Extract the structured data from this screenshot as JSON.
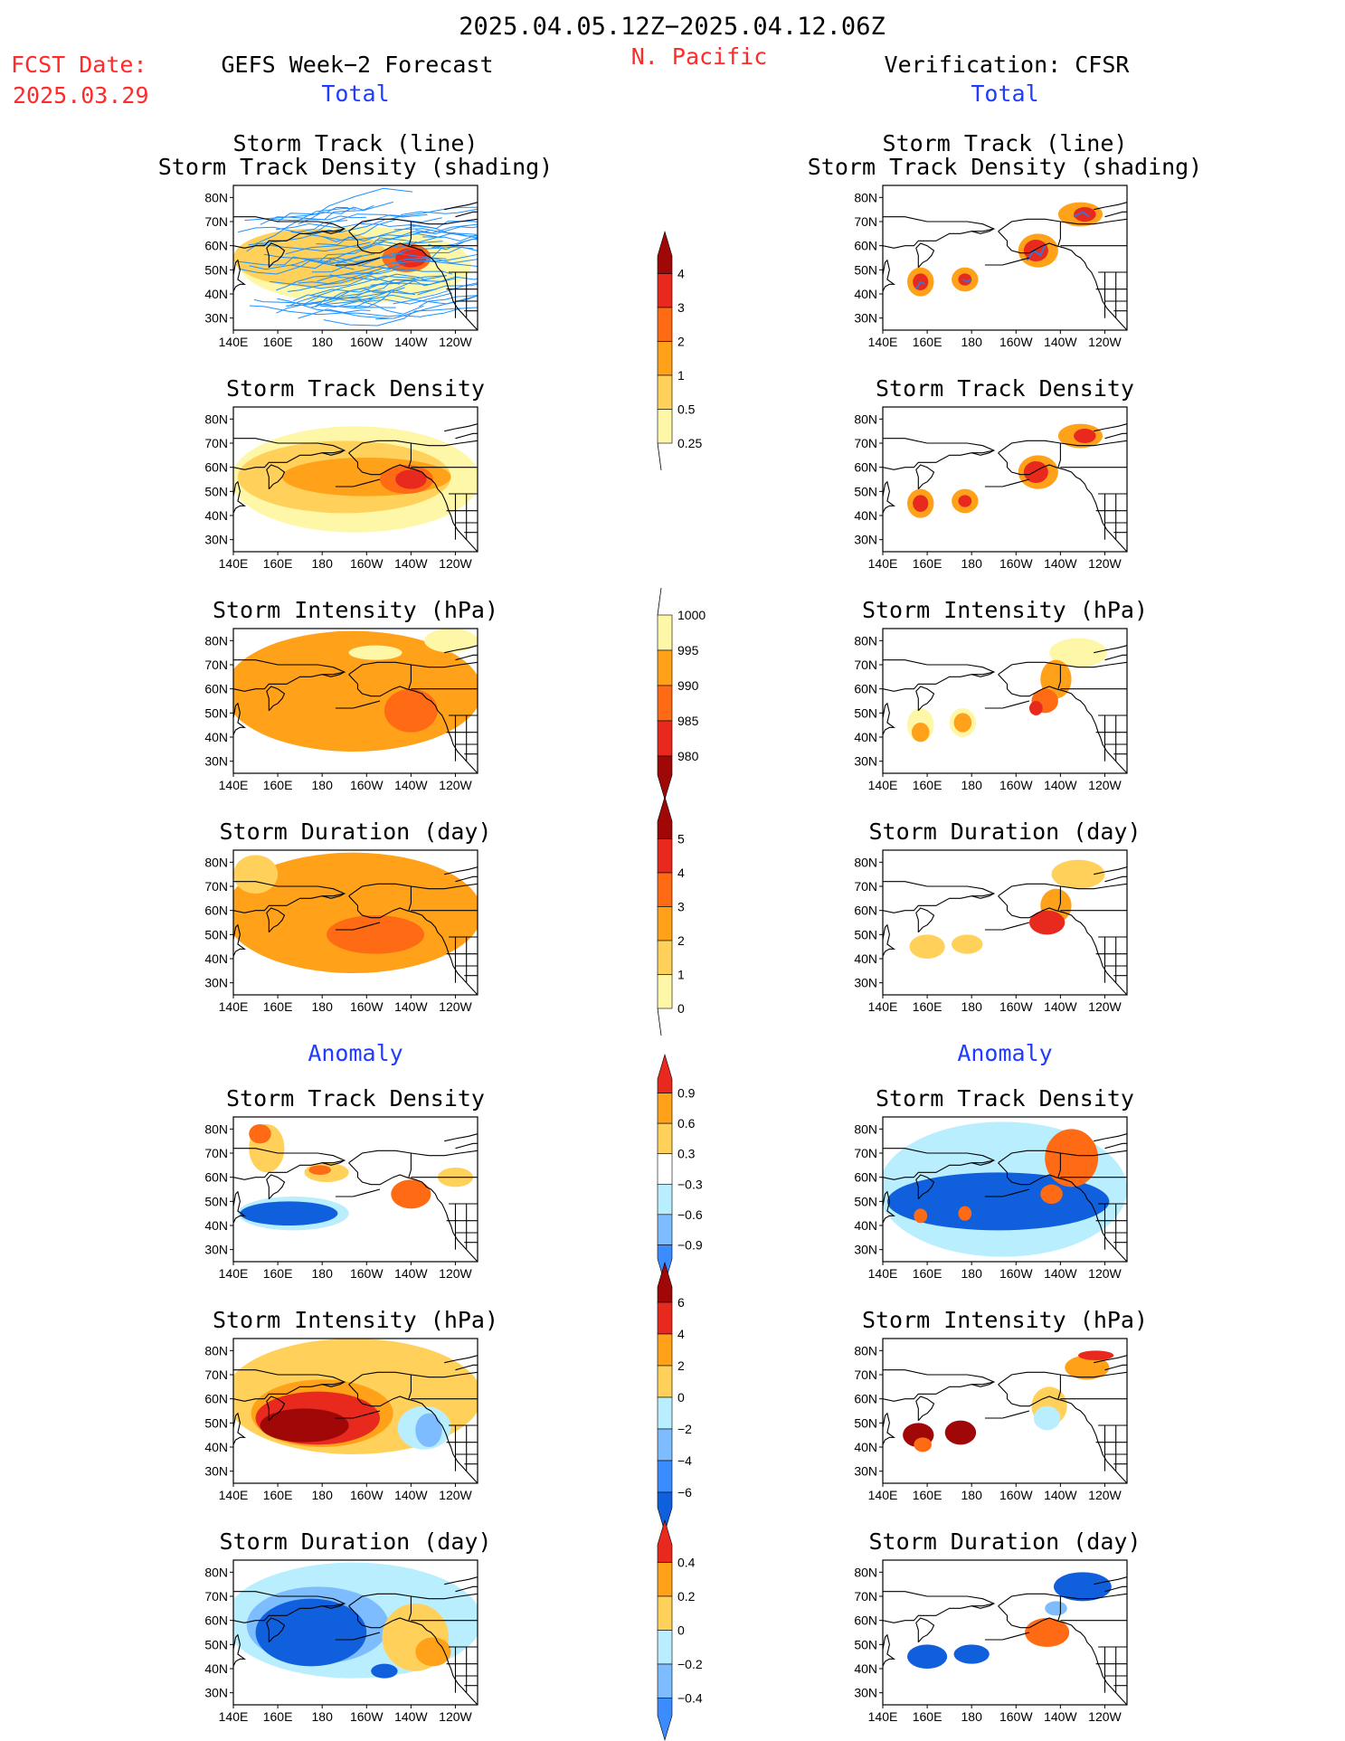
{
  "header": {
    "date_range": "2025.04.05.12Z−2025.04.12.06Z",
    "fcst_label": "FCST Date:",
    "fcst_date": "2025.03.29",
    "left_title": "GEFS Week−2 Forecast",
    "region": "N. Pacific",
    "right_title": "Verification: CFSR",
    "left_section_total": "Total",
    "right_section_total": "Total",
    "left_section_anomaly": "Anomaly",
    "right_section_anomaly": "Anomaly"
  },
  "axes": {
    "lon_ticks": [
      "140E",
      "160E",
      "180",
      "160W",
      "140W",
      "120W"
    ],
    "lat_ticks": [
      "80N",
      "70N",
      "60N",
      "50N",
      "40N",
      "30N"
    ],
    "lon_range_deg_east": [
      140,
      250
    ],
    "lat_range": [
      25,
      85
    ]
  },
  "colors": {
    "lightyellow": "#fff7a8",
    "paleorange": "#ffd15a",
    "orange": "#ffa21a",
    "darkorange": "#ff6a14",
    "red": "#e8291e",
    "darkred": "#a00808",
    "lightblue": "#b9eeff",
    "skyblue": "#7dbcff",
    "blue": "#3a8cff",
    "darkblue": "#1060dd",
    "track": "#1f90ff",
    "track_verif": "#4070d0"
  },
  "panels": [
    {
      "row": 0,
      "side": "left",
      "title1": "Storm Track (line)",
      "title2": "Storm Track Density (shading)",
      "blobs": [
        {
          "lon": 195,
          "lat": 52,
          "rx": 52,
          "ry": 16,
          "level": "lightyellow"
        },
        {
          "lon": 175,
          "lat": 55,
          "rx": 35,
          "ry": 12,
          "level": "paleorange"
        },
        {
          "lon": 218,
          "lat": 55,
          "rx": 11,
          "ry": 6,
          "level": "darkorange"
        },
        {
          "lon": 220,
          "lat": 55,
          "rx": 7,
          "ry": 4,
          "level": "red"
        }
      ],
      "tracks": "ensemble"
    },
    {
      "row": 0,
      "side": "right",
      "title1": "Storm Track (line)",
      "title2": "Storm Track Density (shading)",
      "blobs": [
        {
          "lon": 157,
          "lat": 45,
          "rx": 6,
          "ry": 6,
          "level": "orange"
        },
        {
          "lon": 157,
          "lat": 45,
          "rx": 3.5,
          "ry": 3.5,
          "level": "red"
        },
        {
          "lon": 177,
          "lat": 46,
          "rx": 6,
          "ry": 5,
          "level": "orange"
        },
        {
          "lon": 177,
          "lat": 46,
          "rx": 3,
          "ry": 2.5,
          "level": "red"
        },
        {
          "lon": 210,
          "lat": 58,
          "rx": 9,
          "ry": 7,
          "level": "orange"
        },
        {
          "lon": 209,
          "lat": 58,
          "rx": 5.5,
          "ry": 4.5,
          "level": "red"
        },
        {
          "lon": 229,
          "lat": 73,
          "rx": 10,
          "ry": 5,
          "level": "orange"
        },
        {
          "lon": 231,
          "lat": 73,
          "rx": 5,
          "ry": 3,
          "level": "red"
        }
      ],
      "tracks": "verification"
    },
    {
      "row": 1,
      "side": "left",
      "title1": "Storm Track Density",
      "title2": "",
      "blobs": [
        {
          "lon": 195,
          "lat": 55,
          "rx": 56,
          "ry": 22,
          "level": "lightyellow"
        },
        {
          "lon": 190,
          "lat": 56,
          "rx": 48,
          "ry": 15,
          "level": "paleorange"
        },
        {
          "lon": 200,
          "lat": 56,
          "rx": 38,
          "ry": 8,
          "level": "orange"
        },
        {
          "lon": 218,
          "lat": 55,
          "rx": 12,
          "ry": 6,
          "level": "darkorange"
        },
        {
          "lon": 220,
          "lat": 55,
          "rx": 7,
          "ry": 4,
          "level": "red"
        }
      ]
    },
    {
      "row": 1,
      "side": "right",
      "title1": "Storm Track Density",
      "title2": "",
      "blobs": [
        {
          "lon": 157,
          "lat": 45,
          "rx": 6,
          "ry": 6,
          "level": "orange"
        },
        {
          "lon": 157,
          "lat": 45,
          "rx": 3.5,
          "ry": 3.5,
          "level": "red"
        },
        {
          "lon": 177,
          "lat": 46,
          "rx": 6,
          "ry": 5,
          "level": "orange"
        },
        {
          "lon": 177,
          "lat": 46,
          "rx": 3,
          "ry": 2.5,
          "level": "red"
        },
        {
          "lon": 210,
          "lat": 58,
          "rx": 9,
          "ry": 7,
          "level": "orange"
        },
        {
          "lon": 209,
          "lat": 58,
          "rx": 5.5,
          "ry": 4.5,
          "level": "red"
        },
        {
          "lon": 229,
          "lat": 73,
          "rx": 10,
          "ry": 5,
          "level": "orange"
        },
        {
          "lon": 231,
          "lat": 73,
          "rx": 5,
          "ry": 3,
          "level": "red"
        }
      ]
    },
    {
      "row": 2,
      "side": "left",
      "title1": "Storm Intensity (hPa)",
      "title2": "",
      "blobs": [
        {
          "lon": 194,
          "lat": 59,
          "rx": 58,
          "ry": 25,
          "level": "orange"
        },
        {
          "lon": 220,
          "lat": 51,
          "rx": 12,
          "ry": 9,
          "level": "darkorange"
        },
        {
          "lon": 238,
          "lat": 80,
          "rx": 12,
          "ry": 5,
          "level": "lightyellow"
        },
        {
          "lon": 204,
          "lat": 75,
          "rx": 12,
          "ry": 3,
          "level": "lightyellow"
        }
      ]
    },
    {
      "row": 2,
      "side": "right",
      "title1": "Storm Intensity (hPa)",
      "title2": "",
      "blobs": [
        {
          "lon": 157,
          "lat": 45,
          "rx": 6,
          "ry": 7,
          "level": "lightyellow"
        },
        {
          "lon": 157,
          "lat": 42,
          "rx": 4,
          "ry": 4,
          "level": "orange"
        },
        {
          "lon": 176,
          "lat": 46,
          "rx": 6,
          "ry": 6,
          "level": "lightyellow"
        },
        {
          "lon": 176,
          "lat": 46,
          "rx": 4,
          "ry": 4,
          "level": "orange"
        },
        {
          "lon": 228,
          "lat": 75,
          "rx": 13,
          "ry": 6,
          "level": "lightyellow"
        },
        {
          "lon": 218,
          "lat": 64,
          "rx": 7,
          "ry": 8,
          "level": "orange"
        },
        {
          "lon": 213,
          "lat": 55,
          "rx": 6,
          "ry": 5,
          "level": "darkorange"
        },
        {
          "lon": 209,
          "lat": 52,
          "rx": 3,
          "ry": 3,
          "level": "red"
        }
      ]
    },
    {
      "row": 3,
      "side": "left",
      "title1": "Storm Duration (day)",
      "title2": "",
      "blobs": [
        {
          "lon": 194,
          "lat": 59,
          "rx": 58,
          "ry": 25,
          "level": "orange"
        },
        {
          "lon": 204,
          "lat": 50,
          "rx": 22,
          "ry": 8,
          "level": "darkorange"
        },
        {
          "lon": 150,
          "lat": 75,
          "rx": 10,
          "ry": 8,
          "level": "paleorange"
        }
      ]
    },
    {
      "row": 3,
      "side": "right",
      "title1": "Storm Duration (day)",
      "title2": "",
      "blobs": [
        {
          "lon": 160,
          "lat": 45,
          "rx": 8,
          "ry": 5,
          "level": "paleorange"
        },
        {
          "lon": 178,
          "lat": 46,
          "rx": 7,
          "ry": 4,
          "level": "paleorange"
        },
        {
          "lon": 228,
          "lat": 75,
          "rx": 12,
          "ry": 6,
          "level": "paleorange"
        },
        {
          "lon": 218,
          "lat": 62,
          "rx": 7,
          "ry": 7,
          "level": "orange"
        },
        {
          "lon": 214,
          "lat": 55,
          "rx": 8,
          "ry": 5,
          "level": "red"
        }
      ]
    },
    {
      "row": 4,
      "side": "left",
      "title1": "Storm Track Density",
      "title2": "",
      "blobs": [
        {
          "lon": 167,
          "lat": 45,
          "rx": 25,
          "ry": 7,
          "level": "lightblue"
        },
        {
          "lon": 165,
          "lat": 45,
          "rx": 22,
          "ry": 5,
          "level": "darkblue"
        },
        {
          "lon": 155,
          "lat": 72,
          "rx": 8,
          "ry": 10,
          "level": "paleorange"
        },
        {
          "lon": 152,
          "lat": 78,
          "rx": 5,
          "ry": 4,
          "level": "darkorange"
        },
        {
          "lon": 182,
          "lat": 62,
          "rx": 10,
          "ry": 4,
          "level": "paleorange"
        },
        {
          "lon": 179,
          "lat": 63,
          "rx": 5,
          "ry": 2,
          "level": "darkorange"
        },
        {
          "lon": 220,
          "lat": 53,
          "rx": 9,
          "ry": 6,
          "level": "darkorange"
        },
        {
          "lon": 240,
          "lat": 60,
          "rx": 8,
          "ry": 4,
          "level": "paleorange"
        }
      ]
    },
    {
      "row": 4,
      "side": "right",
      "title1": "Storm Track Density",
      "title2": "",
      "blobs": [
        {
          "lon": 194,
          "lat": 55,
          "rx": 56,
          "ry": 28,
          "level": "lightblue"
        },
        {
          "lon": 192,
          "lat": 50,
          "rx": 50,
          "ry": 12,
          "level": "darkblue"
        },
        {
          "lon": 157,
          "lat": 44,
          "rx": 3,
          "ry": 3,
          "level": "darkorange"
        },
        {
          "lon": 177,
          "lat": 45,
          "rx": 3,
          "ry": 3,
          "level": "darkorange"
        },
        {
          "lon": 225,
          "lat": 68,
          "rx": 12,
          "ry": 12,
          "level": "darkorange"
        },
        {
          "lon": 216,
          "lat": 53,
          "rx": 5,
          "ry": 4,
          "level": "darkorange"
        }
      ]
    },
    {
      "row": 5,
      "side": "left",
      "title1": "Storm Intensity (hPa)",
      "title2": "",
      "blobs": [
        {
          "lon": 194,
          "lat": 61,
          "rx": 58,
          "ry": 24,
          "level": "paleorange"
        },
        {
          "lon": 180,
          "lat": 54,
          "rx": 32,
          "ry": 14,
          "level": "orange"
        },
        {
          "lon": 178,
          "lat": 52,
          "rx": 28,
          "ry": 11,
          "level": "red"
        },
        {
          "lon": 172,
          "lat": 49,
          "rx": 20,
          "ry": 7,
          "level": "darkred"
        },
        {
          "lon": 226,
          "lat": 48,
          "rx": 12,
          "ry": 9,
          "level": "lightblue"
        },
        {
          "lon": 228,
          "lat": 47,
          "rx": 6,
          "ry": 7,
          "level": "skyblue"
        }
      ]
    },
    {
      "row": 5,
      "side": "right",
      "title1": "Storm Intensity (hPa)",
      "title2": "",
      "blobs": [
        {
          "lon": 156,
          "lat": 45,
          "rx": 7,
          "ry": 5,
          "level": "darkred"
        },
        {
          "lon": 158,
          "lat": 41,
          "rx": 4,
          "ry": 3,
          "level": "darkorange"
        },
        {
          "lon": 175,
          "lat": 46,
          "rx": 7,
          "ry": 5,
          "level": "darkred"
        },
        {
          "lon": 232,
          "lat": 73,
          "rx": 10,
          "ry": 5,
          "level": "orange"
        },
        {
          "lon": 236,
          "lat": 78,
          "rx": 8,
          "ry": 2,
          "level": "red"
        },
        {
          "lon": 215,
          "lat": 57,
          "rx": 8,
          "ry": 8,
          "level": "paleorange"
        },
        {
          "lon": 214,
          "lat": 52,
          "rx": 6,
          "ry": 5,
          "level": "lightblue"
        }
      ]
    },
    {
      "row": 6,
      "side": "left",
      "title1": "Storm Duration (day)",
      "title2": "",
      "blobs": [
        {
          "lon": 194,
          "lat": 60,
          "rx": 58,
          "ry": 24,
          "level": "lightblue"
        },
        {
          "lon": 178,
          "lat": 58,
          "rx": 32,
          "ry": 16,
          "level": "skyblue"
        },
        {
          "lon": 175,
          "lat": 55,
          "rx": 25,
          "ry": 14,
          "level": "darkblue"
        },
        {
          "lon": 222,
          "lat": 53,
          "rx": 15,
          "ry": 14,
          "level": "paleorange"
        },
        {
          "lon": 230,
          "lat": 47,
          "rx": 8,
          "ry": 6,
          "level": "orange"
        },
        {
          "lon": 208,
          "lat": 39,
          "rx": 6,
          "ry": 3,
          "level": "darkblue"
        }
      ]
    },
    {
      "row": 6,
      "side": "right",
      "title1": "Storm Duration (day)",
      "title2": "",
      "blobs": [
        {
          "lon": 160,
          "lat": 45,
          "rx": 9,
          "ry": 5,
          "level": "darkblue"
        },
        {
          "lon": 180,
          "lat": 46,
          "rx": 8,
          "ry": 4,
          "level": "darkblue"
        },
        {
          "lon": 230,
          "lat": 74,
          "rx": 13,
          "ry": 6,
          "level": "darkblue"
        },
        {
          "lon": 218,
          "lat": 65,
          "rx": 5,
          "ry": 3,
          "level": "skyblue"
        },
        {
          "lon": 214,
          "lat": 55,
          "rx": 10,
          "ry": 6,
          "level": "darkorange"
        }
      ]
    }
  ],
  "colorbars": [
    {
      "id": "track_density_total",
      "labels": [
        "0.25",
        "0.5",
        "1",
        "2",
        "3",
        "4"
      ],
      "colors": [
        "#fff7a8",
        "#ffd15a",
        "#ffa21a",
        "#ff6a14",
        "#e8291e",
        "#a00808"
      ],
      "arrow": "top"
    },
    {
      "id": "intensity_total",
      "labels": [
        "1000",
        "995",
        "990",
        "985",
        "980"
      ],
      "colors": [
        "#fff7a8",
        "#ffa21a",
        "#ff6a14",
        "#e8291e",
        "#a00808"
      ],
      "arrow": "bottom"
    },
    {
      "id": "duration_total",
      "labels": [
        "0",
        "1",
        "2",
        "3",
        "4",
        "5"
      ],
      "colors": [
        "#fff7a8",
        "#ffd15a",
        "#ffa21a",
        "#ff6a14",
        "#e8291e",
        "#a00808"
      ],
      "arrow": "top"
    },
    {
      "id": "density_anom",
      "labels": [
        "0.9",
        "0.6",
        "0.3",
        "−0.3",
        "−0.6",
        "−0.9"
      ],
      "colors": [
        "#e8291e",
        "#ffa21a",
        "#ffd15a",
        "#ffffff",
        "#b9eeff",
        "#7dbcff",
        "#3a8cff"
      ],
      "arrow": "both"
    },
    {
      "id": "intensity_anom",
      "labels": [
        "6",
        "4",
        "2",
        "0",
        "−2",
        "−4",
        "−6"
      ],
      "colors": [
        "#a00808",
        "#e8291e",
        "#ffa21a",
        "#ffd15a",
        "#b9eeff",
        "#7dbcff",
        "#3a8cff",
        "#1060dd"
      ],
      "arrow": "both"
    },
    {
      "id": "duration_anom",
      "labels": [
        "0.4",
        "0.2",
        "0",
        "−0.2",
        "−0.4"
      ],
      "colors": [
        "#e8291e",
        "#ffa21a",
        "#ffd15a",
        "#b9eeff",
        "#7dbcff",
        "#3a8cff"
      ],
      "arrow": "both"
    }
  ]
}
